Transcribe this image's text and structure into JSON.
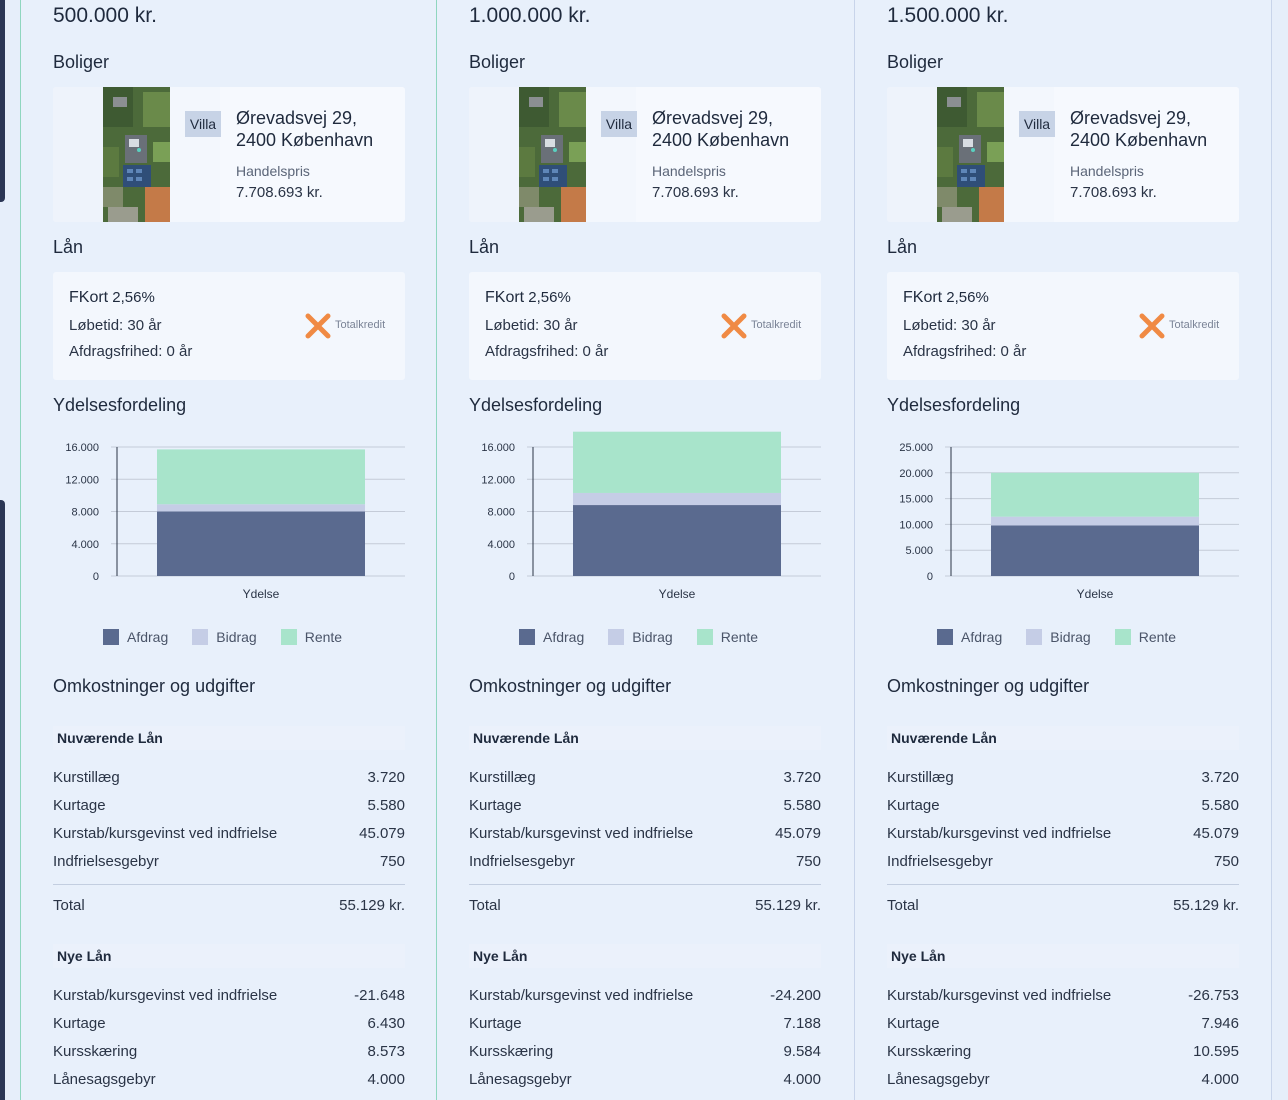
{
  "columns": [
    {
      "amount": "500.000 kr.",
      "boliger_title": "Boliger",
      "house": {
        "badge": "Villa",
        "address_line1": "Ørevadsvej 29,",
        "address_line2": "2400 København",
        "price_label": "Handelspris",
        "price_value": "7.708.693 kr."
      },
      "lan_title": "Lån",
      "loan": {
        "name": "FKort",
        "rate": "2,56%",
        "term": "Løbetid: 30 år",
        "interest_only": "Afdragsfrihed: 0 år",
        "lender": "Totalkredit"
      },
      "ydelse_title": "Ydelsesfordeling",
      "omk_title": "Omkostninger og udgifter",
      "current": {
        "header": "Nuværende Lån",
        "rows": [
          {
            "label": "Kurstillæg",
            "value": "3.720"
          },
          {
            "label": "Kurtage",
            "value": "5.580"
          },
          {
            "label": "Kurstab/kursgevinst ved indfrielse",
            "value": "45.079"
          },
          {
            "label": "Indfrielsesgebyr",
            "value": "750"
          }
        ],
        "total_label": "Total",
        "total_value": "55.129 kr."
      },
      "new": {
        "header": "Nye Lån",
        "rows": [
          {
            "label": "Kurstab/kursgevinst ved indfrielse",
            "value": "-21.648"
          },
          {
            "label": "Kurtage",
            "value": "6.430"
          },
          {
            "label": "Kursskæring",
            "value": "8.573"
          },
          {
            "label": "Lånesagsgebyr",
            "value": "4.000"
          }
        ]
      }
    },
    {
      "amount": "1.000.000 kr.",
      "boliger_title": "Boliger",
      "house": {
        "badge": "Villa",
        "address_line1": "Ørevadsvej 29,",
        "address_line2": "2400 København",
        "price_label": "Handelspris",
        "price_value": "7.708.693 kr."
      },
      "lan_title": "Lån",
      "loan": {
        "name": "FKort",
        "rate": "2,56%",
        "term": "Løbetid: 30 år",
        "interest_only": "Afdragsfrihed: 0 år",
        "lender": "Totalkredit"
      },
      "ydelse_title": "Ydelsesfordeling",
      "omk_title": "Omkostninger og udgifter",
      "current": {
        "header": "Nuværende Lån",
        "rows": [
          {
            "label": "Kurstillæg",
            "value": "3.720"
          },
          {
            "label": "Kurtage",
            "value": "5.580"
          },
          {
            "label": "Kurstab/kursgevinst ved indfrielse",
            "value": "45.079"
          },
          {
            "label": "Indfrielsesgebyr",
            "value": "750"
          }
        ],
        "total_label": "Total",
        "total_value": "55.129 kr."
      },
      "new": {
        "header": "Nye Lån",
        "rows": [
          {
            "label": "Kurstab/kursgevinst ved indfrielse",
            "value": "-24.200"
          },
          {
            "label": "Kurtage",
            "value": "7.188"
          },
          {
            "label": "Kursskæring",
            "value": "9.584"
          },
          {
            "label": "Lånesagsgebyr",
            "value": "4.000"
          }
        ]
      }
    },
    {
      "amount": "1.500.000 kr.",
      "boliger_title": "Boliger",
      "house": {
        "badge": "Villa",
        "address_line1": "Ørevadsvej 29,",
        "address_line2": "2400 København",
        "price_label": "Handelspris",
        "price_value": "7.708.693 kr."
      },
      "lan_title": "Lån",
      "loan": {
        "name": "FKort",
        "rate": "2,56%",
        "term": "Løbetid: 30 år",
        "interest_only": "Afdragsfrihed: 0 år",
        "lender": "Totalkredit"
      },
      "ydelse_title": "Ydelsesfordeling",
      "omk_title": "Omkostninger og udgifter",
      "current": {
        "header": "Nuværende Lån",
        "rows": [
          {
            "label": "Kurstillæg",
            "value": "3.720"
          },
          {
            "label": "Kurtage",
            "value": "5.580"
          },
          {
            "label": "Kurstab/kursgevinst ved indfrielse",
            "value": "45.079"
          },
          {
            "label": "Indfrielsesgebyr",
            "value": "750"
          }
        ],
        "total_label": "Total",
        "total_value": "55.129 kr."
      },
      "new": {
        "header": "Nye Lån",
        "rows": [
          {
            "label": "Kurstab/kursgevinst ved indfrielse",
            "value": "-26.753"
          },
          {
            "label": "Kurtage",
            "value": "7.946"
          },
          {
            "label": "Kursskæring",
            "value": "10.595"
          },
          {
            "label": "Lånesagsgebyr",
            "value": "4.000"
          }
        ]
      }
    }
  ],
  "colors": {
    "afdrag": "#5a6a8f",
    "bidrag": "#c5cde6",
    "rente": "#a8e4cb",
    "accent": "#8fd6bf",
    "logo": "#f08a44"
  },
  "chart_data": [
    {
      "type": "bar",
      "stacked": true,
      "categories": [
        "Ydelse"
      ],
      "ylim": [
        0,
        16000
      ],
      "yticks": [
        0,
        4000,
        8000,
        12000,
        16000
      ],
      "ytick_labels": [
        "0",
        "4.000",
        "8.000",
        "12.000",
        "16.000"
      ],
      "series": [
        {
          "name": "Afdrag",
          "values": [
            8000
          ]
        },
        {
          "name": "Bidrag",
          "values": [
            900
          ]
        },
        {
          "name": "Rente",
          "values": [
            6800
          ]
        }
      ]
    },
    {
      "type": "bar",
      "stacked": true,
      "categories": [
        "Ydelse"
      ],
      "ylim": [
        0,
        16000
      ],
      "yticks": [
        0,
        4000,
        8000,
        12000,
        16000
      ],
      "ytick_labels": [
        "0",
        "4.000",
        "8.000",
        "12.000",
        "16.000"
      ],
      "series": [
        {
          "name": "Afdrag",
          "values": [
            8800
          ]
        },
        {
          "name": "Bidrag",
          "values": [
            1500
          ]
        },
        {
          "name": "Rente",
          "values": [
            7600
          ]
        }
      ]
    },
    {
      "type": "bar",
      "stacked": true,
      "categories": [
        "Ydelse"
      ],
      "ylim": [
        0,
        25000
      ],
      "yticks": [
        0,
        5000,
        10000,
        15000,
        20000,
        25000
      ],
      "ytick_labels": [
        "0",
        "5.000",
        "10.000",
        "15.000",
        "20.000",
        "25.000"
      ],
      "series": [
        {
          "name": "Afdrag",
          "values": [
            9800
          ]
        },
        {
          "name": "Bidrag",
          "values": [
            1700
          ]
        },
        {
          "name": "Rente",
          "values": [
            8500
          ]
        }
      ]
    }
  ]
}
